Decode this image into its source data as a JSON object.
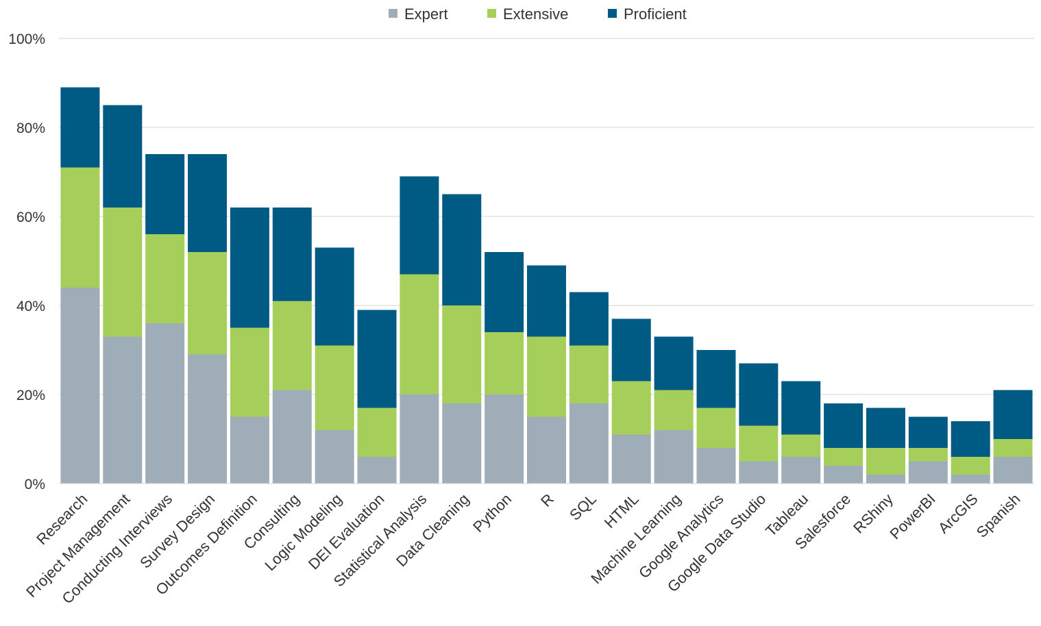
{
  "chart_data": {
    "type": "bar",
    "stacked": true,
    "categories": [
      "Research",
      "Project Management",
      "Conducting Interviews",
      "Survey Design",
      "Outcomes Definition",
      "Consulting",
      "Logic Modeling",
      "DEI Evaluation",
      "Statistical Analysis",
      "Data Cleaning",
      "Python",
      "R",
      "SQL",
      "HTML",
      "Machine Learning",
      "Google Analytics",
      "Google Data Studio",
      "Tableau",
      "Salesforce",
      "RShiny",
      "PowerBI",
      "ArcGIS",
      "Spanish"
    ],
    "series": [
      {
        "name": "Expert",
        "color": "#9eadb7",
        "values": [
          44,
          33,
          36,
          29,
          15,
          21,
          12,
          6,
          20,
          18,
          20,
          15,
          18,
          11,
          12,
          8,
          5,
          6,
          4,
          2,
          5,
          2,
          6
        ]
      },
      {
        "name": "Extensive",
        "color": "#a6ce5a",
        "values": [
          27,
          29,
          20,
          23,
          20,
          20,
          19,
          11,
          27,
          22,
          14,
          18,
          13,
          12,
          9,
          9,
          8,
          5,
          4,
          6,
          3,
          4,
          4
        ]
      },
      {
        "name": "Proficient",
        "color": "#005b84",
        "values": [
          18,
          23,
          18,
          22,
          27,
          21,
          22,
          22,
          22,
          25,
          18,
          16,
          12,
          14,
          12,
          13,
          14,
          12,
          10,
          9,
          7,
          8,
          11
        ]
      }
    ],
    "yticks": [
      "0%",
      "20%",
      "40%",
      "60%",
      "80%",
      "100%"
    ],
    "ylim": [
      0,
      100
    ],
    "legend_position": "top",
    "grid": true,
    "title": "",
    "xlabel": "",
    "ylabel": ""
  }
}
